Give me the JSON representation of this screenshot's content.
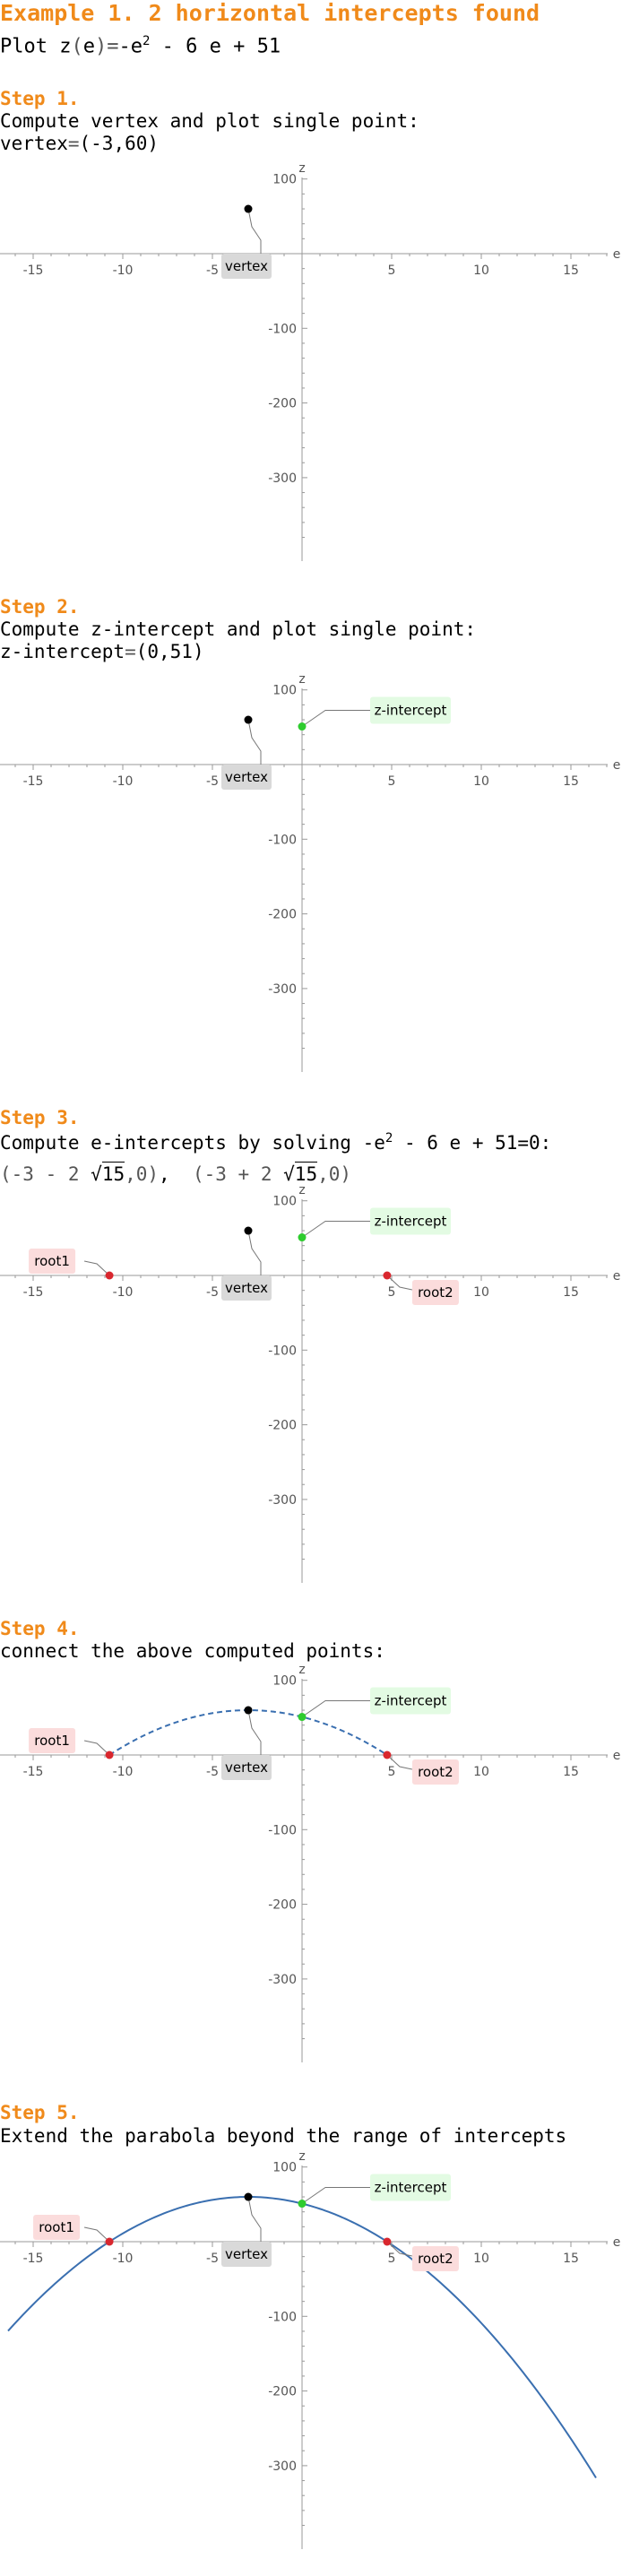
{
  "title": "Example 1. 2 horizontal intercepts found",
  "subtitle": {
    "prefix": "Plot ",
    "fn": "z",
    "paren_open": "(",
    "var": "e",
    "paren_close": ")",
    "eq": "=",
    "rhs_a": "-e",
    "rhs_exp": "2",
    "rhs_b": " - 6 e + 51"
  },
  "steps": [
    {
      "heading": "Step 1.",
      "line1": "Compute vertex and plot single point:",
      "line2_label": "vertex",
      "line2_eq": "=",
      "line2_val": "(-3,60)"
    },
    {
      "heading": "Step 2.",
      "line1": "Compute z-intercept and plot single point:",
      "line2_label": "z-intercept",
      "line2_eq": "=",
      "line2_val": "(0,51)"
    },
    {
      "heading": "Step 3.",
      "line1_a": "Compute e-intercepts by solving ",
      "line1_eq_a": "-e",
      "line1_exp": "2",
      "line1_eq_b": " - 6 e + 51=0:",
      "root1_a": "(-3 - 2 ",
      "root1_rad": "15",
      "root1_b": ",0)",
      "sep": ",  ",
      "root2_a": "(-3 + 2 ",
      "root2_rad": "15",
      "root2_b": ",0)"
    },
    {
      "heading": "Step 4.",
      "line1": "connect the above computed points:"
    },
    {
      "heading": "Step 5.",
      "line1": "Extend the parabola beyond the range of intercepts"
    }
  ],
  "axes": {
    "x_label": "e",
    "y_label": "z",
    "x_ticks": [
      "-15",
      "-10",
      "-5",
      "5",
      "10",
      "15"
    ],
    "y_ticks": [
      "100",
      "-100",
      "-200",
      "-300"
    ]
  },
  "labels": {
    "vertex": "vertex",
    "zint": "z-intercept",
    "root1": "root1",
    "root2": "root2"
  },
  "chart_data": [
    {
      "type": "scatter",
      "x_label": "e",
      "y_label": "z",
      "xlim": [
        -17,
        17
      ],
      "ylim": [
        -380,
        110
      ],
      "points": [
        {
          "label": "vertex",
          "x": -3,
          "y": 60
        }
      ]
    },
    {
      "type": "scatter",
      "x_label": "e",
      "y_label": "z",
      "xlim": [
        -17,
        17
      ],
      "ylim": [
        -380,
        110
      ],
      "points": [
        {
          "label": "vertex",
          "x": -3,
          "y": 60
        },
        {
          "label": "z-intercept",
          "x": 0,
          "y": 51
        }
      ]
    },
    {
      "type": "scatter",
      "x_label": "e",
      "y_label": "z",
      "xlim": [
        -17,
        17
      ],
      "ylim": [
        -380,
        110
      ],
      "points": [
        {
          "label": "vertex",
          "x": -3,
          "y": 60
        },
        {
          "label": "z-intercept",
          "x": 0,
          "y": 51
        },
        {
          "label": "root1",
          "x": -10.746,
          "y": 0
        },
        {
          "label": "root2",
          "x": 4.746,
          "y": 0
        }
      ]
    },
    {
      "type": "line",
      "x_label": "e",
      "y_label": "z",
      "xlim": [
        -17,
        17
      ],
      "ylim": [
        -380,
        110
      ],
      "curve": {
        "style": "dashed",
        "x_range": [
          -10.746,
          4.746
        ]
      },
      "points": [
        {
          "label": "vertex",
          "x": -3,
          "y": 60
        },
        {
          "label": "z-intercept",
          "x": 0,
          "y": 51
        },
        {
          "label": "root1",
          "x": -10.746,
          "y": 0
        },
        {
          "label": "root2",
          "x": 4.746,
          "y": 0
        }
      ]
    },
    {
      "type": "line",
      "x_label": "e",
      "y_label": "z",
      "xlim": [
        -17,
        17
      ],
      "ylim": [
        -380,
        110
      ],
      "curve": {
        "style": "solid",
        "x_range": [
          -16.4,
          16.4
        ]
      },
      "points": [
        {
          "label": "vertex",
          "x": -3,
          "y": 60
        },
        {
          "label": "z-intercept",
          "x": 0,
          "y": 51
        },
        {
          "label": "root1",
          "x": -10.746,
          "y": 0
        },
        {
          "label": "root2",
          "x": 4.746,
          "y": 0
        }
      ]
    }
  ],
  "colors": {
    "accent": "#f08a1a",
    "vertex": "#000000",
    "zint": "#2ecc2e",
    "root": "#d9272e",
    "curve": "#3a6fb0",
    "vertex_box": "#d9d9d9",
    "zint_box": "#e3fbe3",
    "root_box": "#fbdcdc"
  }
}
